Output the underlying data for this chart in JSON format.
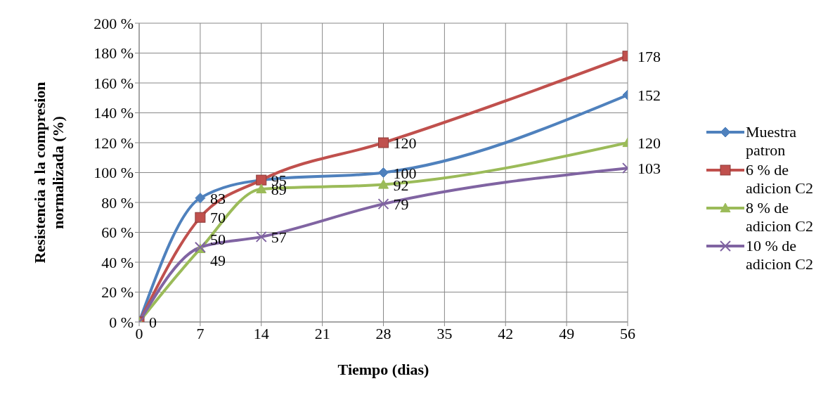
{
  "chart_data": {
    "type": "line",
    "xlabel": "Tiempo (dias)",
    "ylabel": "Resistencia a la compresion normalizada (%)",
    "x": [
      0,
      7,
      14,
      28,
      56
    ],
    "series": [
      {
        "name": "Muestra patron",
        "color": "#4f81bd",
        "marker": "diamond",
        "values": [
          0,
          83,
          95,
          100,
          152
        ]
      },
      {
        "name": "6 % de adicion C2",
        "color": "#c0504d",
        "marker": "square",
        "values": [
          0,
          70,
          95,
          120,
          178
        ],
        "value_labels": [
          null,
          "70",
          null,
          "120",
          "178"
        ]
      },
      {
        "name": "8 % de adicion C2",
        "color": "#9bbb59",
        "marker": "triangle",
        "values": [
          0,
          49,
          89,
          92,
          120
        ],
        "value_labels": [
          null,
          "49",
          "89",
          "92",
          "120"
        ]
      },
      {
        "name": "10 % de adicion C2",
        "color": "#8064a2",
        "marker": "cross",
        "values": [
          0,
          50,
          57,
          79,
          103
        ],
        "value_labels": [
          null,
          "50",
          "57",
          "79",
          "103"
        ]
      }
    ],
    "xlim": [
      0,
      56
    ],
    "xticks": [
      0,
      7,
      14,
      21,
      28,
      35,
      42,
      49,
      56
    ],
    "ylim": [
      0,
      200
    ],
    "yticks": [
      {
        "value": 0,
        "label": "0 %"
      },
      {
        "value": 20,
        "label": "20 %"
      },
      {
        "value": 40,
        "label": "40 %"
      },
      {
        "value": 60,
        "label": "60 %"
      },
      {
        "value": 80,
        "label": "80 %"
      },
      {
        "value": 100,
        "label": "100 %"
      },
      {
        "value": 120,
        "label": "120 %"
      },
      {
        "value": 140,
        "label": "140 %"
      },
      {
        "value": 160,
        "label": "160 %"
      },
      {
        "value": 180,
        "label": "180 %"
      },
      {
        "value": 200,
        "label": "200 %"
      }
    ],
    "grid": true,
    "legend": "right",
    "data_labels": true,
    "line_style": "solid"
  }
}
